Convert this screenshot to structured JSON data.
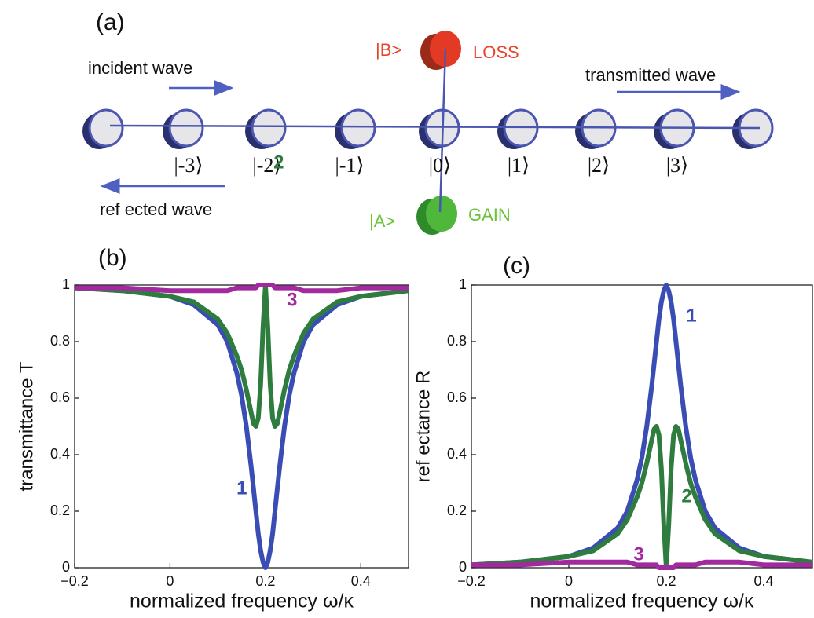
{
  "diagram": {
    "label": "(a)",
    "incident": "incident wave",
    "transmitted": "transmitted wave",
    "reflected": "ref ected wave",
    "states": [
      "|-3⟩",
      "|-2⟩",
      "|-1⟩",
      "|0⟩",
      "|1⟩",
      "|2⟩",
      "|3⟩"
    ],
    "b_state": "|B>",
    "loss": "LOSS",
    "a_state": "|A>",
    "gain": "GAIN"
  },
  "chart_data": [
    {
      "type": "line",
      "title": "(b)",
      "x_label": "normalized frequency ω/κ",
      "y_label": "transmittance T",
      "x": [
        -0.2,
        -0.1,
        0,
        0.05,
        0.1,
        0.12,
        0.14,
        0.15,
        0.16,
        0.17,
        0.175,
        0.18,
        0.185,
        0.19,
        0.195,
        0.2,
        0.205,
        0.21,
        0.215,
        0.22,
        0.225,
        0.23,
        0.24,
        0.25,
        0.26,
        0.28,
        0.3,
        0.35,
        0.4,
        0.5
      ],
      "series": [
        {
          "name": "1",
          "color": "#3a4db5",
          "values": [
            0.99,
            0.98,
            0.96,
            0.93,
            0.86,
            0.8,
            0.69,
            0.61,
            0.5,
            0.36,
            0.28,
            0.2,
            0.12,
            0.06,
            0.02,
            0,
            0.02,
            0.06,
            0.12,
            0.2,
            0.28,
            0.36,
            0.5,
            0.61,
            0.69,
            0.8,
            0.86,
            0.93,
            0.96,
            0.98
          ]
        },
        {
          "name": "2",
          "color": "#2e7d3e",
          "values": [
            0.99,
            0.98,
            0.96,
            0.94,
            0.88,
            0.83,
            0.75,
            0.7,
            0.63,
            0.55,
            0.51,
            0.5,
            0.53,
            0.65,
            0.85,
            1,
            0.85,
            0.65,
            0.53,
            0.5,
            0.51,
            0.55,
            0.63,
            0.7,
            0.75,
            0.83,
            0.88,
            0.94,
            0.96,
            0.98
          ]
        },
        {
          "name": "3",
          "color": "#a3299f",
          "values": [
            0.99,
            0.99,
            0.98,
            0.98,
            0.98,
            0.98,
            0.99,
            0.99,
            0.99,
            0.99,
            0.99,
            0.99,
            1,
            1,
            1,
            1,
            1,
            1,
            1,
            0.99,
            0.99,
            0.99,
            0.99,
            0.99,
            0.99,
            0.98,
            0.98,
            0.98,
            0.99,
            0.99
          ]
        }
      ],
      "xlim": [
        -0.2,
        0.5
      ],
      "ylim": [
        0,
        1
      ],
      "xticks": [
        {
          "value": -0.2,
          "label": "−0.2"
        },
        0,
        0.2,
        0.4
      ],
      "yticks": [
        0,
        0.2,
        0.4,
        0.6,
        0.8,
        1
      ]
    },
    {
      "type": "line",
      "title": "(c)",
      "x_label": "normalized frequency ω/κ",
      "y_label": "ref ectance R",
      "x": [
        -0.2,
        -0.1,
        0,
        0.05,
        0.1,
        0.12,
        0.14,
        0.15,
        0.16,
        0.17,
        0.175,
        0.18,
        0.185,
        0.19,
        0.195,
        0.2,
        0.205,
        0.21,
        0.215,
        0.22,
        0.225,
        0.23,
        0.24,
        0.25,
        0.26,
        0.28,
        0.3,
        0.35,
        0.4,
        0.5
      ],
      "series": [
        {
          "name": "1",
          "color": "#3a4db5",
          "values": [
            0.01,
            0.02,
            0.04,
            0.07,
            0.14,
            0.2,
            0.31,
            0.39,
            0.5,
            0.64,
            0.72,
            0.8,
            0.88,
            0.94,
            0.98,
            1,
            0.98,
            0.94,
            0.88,
            0.8,
            0.72,
            0.64,
            0.5,
            0.39,
            0.31,
            0.2,
            0.14,
            0.07,
            0.04,
            0.02
          ]
        },
        {
          "name": "2",
          "color": "#2e7d3e",
          "values": [
            0.01,
            0.02,
            0.04,
            0.06,
            0.12,
            0.17,
            0.25,
            0.3,
            0.37,
            0.45,
            0.49,
            0.5,
            0.47,
            0.35,
            0.15,
            0,
            0.15,
            0.35,
            0.47,
            0.5,
            0.49,
            0.45,
            0.37,
            0.3,
            0.25,
            0.17,
            0.12,
            0.06,
            0.04,
            0.02
          ]
        },
        {
          "name": "3",
          "color": "#a3299f",
          "values": [
            0.01,
            0.01,
            0.02,
            0.02,
            0.02,
            0.02,
            0.01,
            0.01,
            0.01,
            0.01,
            0.01,
            0.01,
            0,
            0,
            0,
            0,
            0,
            0,
            0,
            0.01,
            0.01,
            0.01,
            0.01,
            0.01,
            0.01,
            0.02,
            0.02,
            0.02,
            0.01,
            0.01
          ]
        }
      ],
      "xlim": [
        -0.2,
        0.5
      ],
      "ylim": [
        0,
        1
      ],
      "xticks": [
        {
          "value": -0.2,
          "label": "−0.2"
        },
        0,
        0.2,
        0.4
      ],
      "yticks": [
        0,
        0.2,
        0.4,
        0.6,
        0.8,
        1
      ]
    }
  ]
}
